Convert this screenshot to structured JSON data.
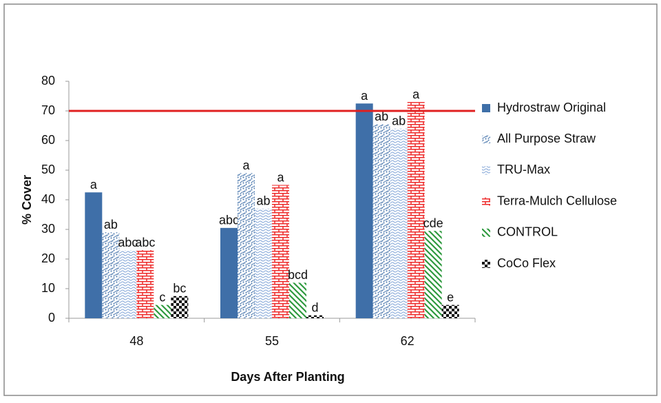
{
  "chart_data": {
    "type": "bar",
    "x_label": "Days After Planting",
    "y_label": "% Cover",
    "categories": [
      "48",
      "55",
      "62"
    ],
    "series": [
      {
        "name": "Hydrostraw Original",
        "color": "#3f6fa8",
        "pattern": "solid",
        "values": [
          42.5,
          30.5,
          72.5
        ],
        "letters": [
          "a",
          "abc",
          "a"
        ]
      },
      {
        "name": "All Purpose Straw",
        "color": "#3f6fa8",
        "pattern": "dots",
        "values": [
          29,
          49,
          65.5
        ],
        "letters": [
          "ab",
          "a",
          "ab"
        ]
      },
      {
        "name": "TRU-Max",
        "color": "#7fa3d6",
        "pattern": "waves",
        "values": [
          23,
          37,
          64
        ],
        "letters": [
          "abc",
          "ab",
          "ab"
        ]
      },
      {
        "name": "Terra-Mulch Cellulose",
        "color": "#ee2a2a",
        "pattern": "bricks",
        "values": [
          23,
          45,
          73
        ],
        "letters": [
          "abc",
          "a",
          "a"
        ]
      },
      {
        "name": "CONTROL",
        "color": "#2f9a3f",
        "pattern": "diagonal",
        "values": [
          4.5,
          12,
          29.5
        ],
        "letters": [
          "c",
          "bcd",
          "cde"
        ]
      },
      {
        "name": "CoCo Flex",
        "color": "#111111",
        "pattern": "checker",
        "values": [
          7.5,
          1,
          4.5
        ],
        "letters": [
          "bc",
          "d",
          "e"
        ]
      }
    ],
    "reference_line": {
      "value": 70,
      "color": "#e02020"
    },
    "ylim": [
      0,
      80
    ],
    "yticks": [
      0,
      10,
      20,
      30,
      40,
      50,
      60,
      70,
      80
    ],
    "grid": false
  }
}
